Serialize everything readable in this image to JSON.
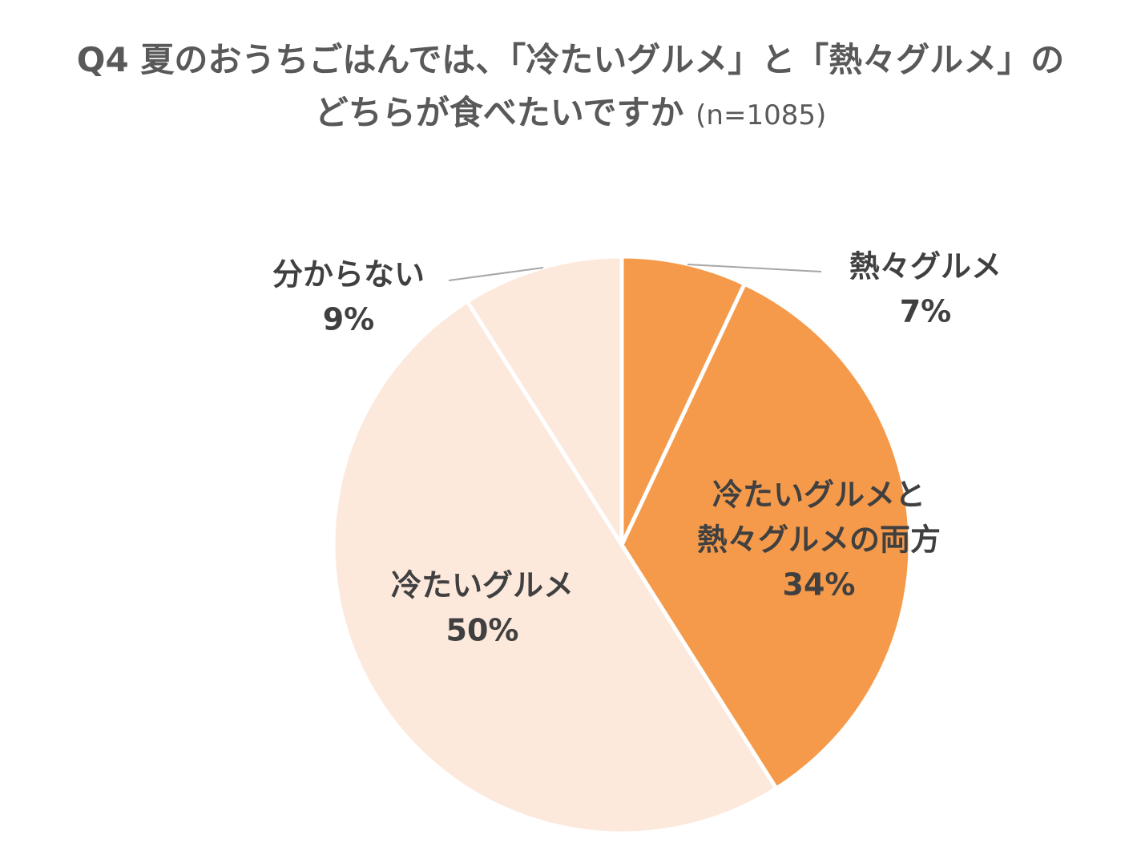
{
  "title": {
    "line1": "Q4 夏のおうちごはんでは、「冷たいグルメ」と「熱々グルメ」の",
    "line2": "どちらが食べたいですか",
    "sample": "(n=1085)"
  },
  "chart_data": {
    "type": "pie",
    "start_angle_deg": 0,
    "direction": "clockwise",
    "slices": [
      {
        "label": "熱々グルメ",
        "value": 7,
        "value_label": "7%",
        "color": "#f59a4a",
        "label_placement": "outside-right"
      },
      {
        "label": "冷たいグルメと\n熱々グルメの両方",
        "value": 34,
        "value_label": "34%",
        "color": "#f59a4a",
        "label_placement": "inside"
      },
      {
        "label": "冷たいグルメ",
        "value": 50,
        "value_label": "50%",
        "color": "#fce9dc",
        "label_placement": "inside"
      },
      {
        "label": "分からない",
        "value": 9,
        "value_label": "9%",
        "color": "#fce9dc",
        "label_placement": "outside-left"
      }
    ]
  }
}
